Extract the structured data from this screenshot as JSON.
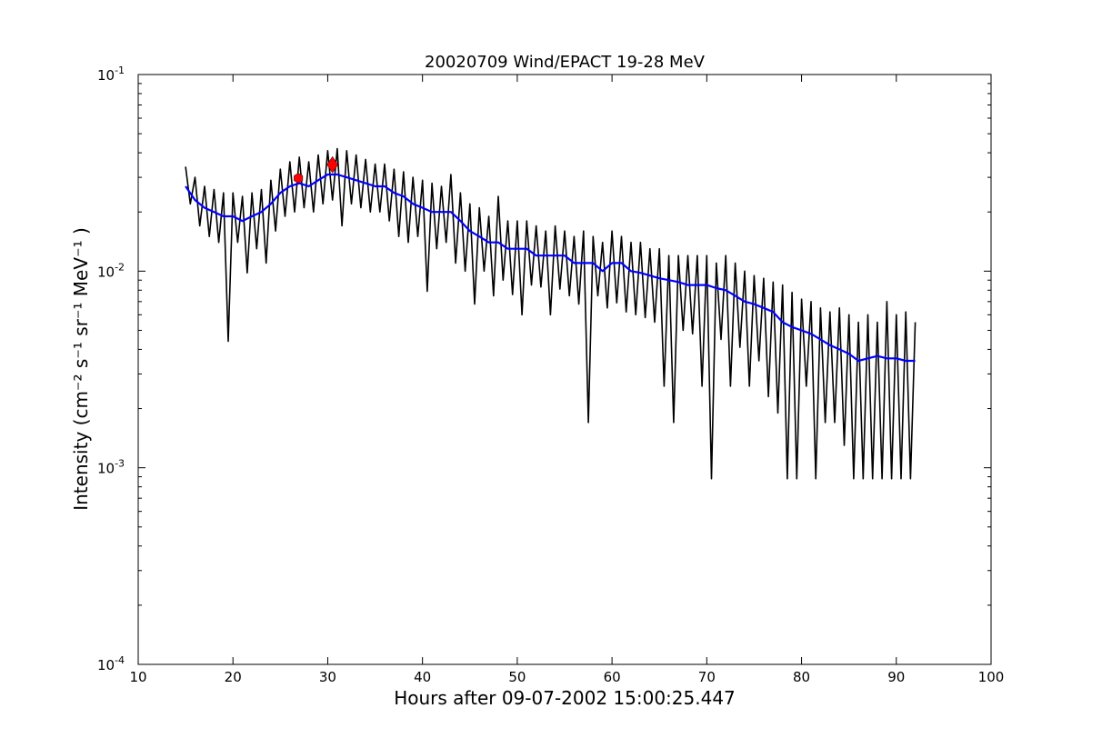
{
  "chart_data": {
    "type": "line",
    "title": "20020709 Wind/EPACT 19-28 MeV",
    "xlabel": "Hours after 09-07-2002 15:00:25.447",
    "ylabel": "Intensity (cm⁻² s⁻¹ sr⁻¹ MeV⁻¹ )",
    "xlim": [
      10,
      100
    ],
    "ylim": [
      0.0001,
      0.1
    ],
    "yscale": "log",
    "grid": false,
    "xticks": [
      10,
      20,
      30,
      40,
      50,
      60,
      70,
      80,
      90,
      100
    ],
    "xtick_labels": [
      "10",
      "20",
      "30",
      "40",
      "50",
      "60",
      "70",
      "80",
      "90",
      "100"
    ],
    "yticks": [
      0.0001,
      0.001,
      0.01,
      0.1
    ],
    "ytick_labels": [
      {
        "base": "10",
        "exp": "-4"
      },
      {
        "base": "10",
        "exp": "-3"
      },
      {
        "base": "10",
        "exp": "-2"
      },
      {
        "base": "10",
        "exp": "-1"
      }
    ],
    "series": [
      {
        "name": "intensity",
        "color": "#000000",
        "x_start": 15,
        "x_step": 0.5,
        "values": [
          0.034,
          0.022,
          0.03,
          0.017,
          0.027,
          0.015,
          0.026,
          0.014,
          0.025,
          0.0044,
          0.025,
          0.014,
          0.024,
          0.0098,
          0.025,
          0.013,
          0.026,
          0.011,
          0.029,
          0.016,
          0.033,
          0.019,
          0.036,
          0.02,
          0.038,
          0.021,
          0.036,
          0.02,
          0.039,
          0.022,
          0.041,
          0.023,
          0.042,
          0.017,
          0.041,
          0.022,
          0.039,
          0.021,
          0.037,
          0.02,
          0.035,
          0.02,
          0.035,
          0.018,
          0.033,
          0.015,
          0.032,
          0.014,
          0.03,
          0.015,
          0.029,
          0.0079,
          0.028,
          0.013,
          0.027,
          0.014,
          0.031,
          0.011,
          0.025,
          0.01,
          0.022,
          0.0068,
          0.021,
          0.01,
          0.019,
          0.0075,
          0.024,
          0.009,
          0.018,
          0.0076,
          0.018,
          0.006,
          0.018,
          0.0085,
          0.017,
          0.0083,
          0.016,
          0.006,
          0.017,
          0.0081,
          0.016,
          0.0075,
          0.015,
          0.0068,
          0.016,
          0.0017,
          0.015,
          0.0075,
          0.014,
          0.0065,
          0.016,
          0.0069,
          0.015,
          0.0062,
          0.014,
          0.006,
          0.014,
          0.0058,
          0.013,
          0.0055,
          0.013,
          0.0026,
          0.012,
          0.0017,
          0.012,
          0.005,
          0.012,
          0.0048,
          0.012,
          0.0026,
          0.012,
          0.00088,
          0.011,
          0.0045,
          0.012,
          0.0026,
          0.011,
          0.0041,
          0.01,
          0.0026,
          0.0095,
          0.0035,
          0.0092,
          0.0023,
          0.0088,
          0.0019,
          0.0085,
          0.00088,
          0.0078,
          0.00088,
          0.0072,
          0.0026,
          0.007,
          0.00088,
          0.0065,
          0.0017,
          0.0062,
          0.0017,
          0.0065,
          0.0013,
          0.006,
          0.00088,
          0.0055,
          0.00088,
          0.006,
          0.00088,
          0.0055,
          0.00088,
          0.007,
          0.00088,
          0.006,
          0.00088,
          0.0062,
          0.00088,
          0.0055
        ]
      },
      {
        "name": "smoothed",
        "color": "#0000ff",
        "x_start": 15,
        "x_step": 1,
        "values": [
          0.027,
          0.023,
          0.021,
          0.02,
          0.019,
          0.019,
          0.018,
          0.019,
          0.02,
          0.022,
          0.025,
          0.027,
          0.028,
          0.027,
          0.029,
          0.031,
          0.031,
          0.03,
          0.029,
          0.028,
          0.027,
          0.027,
          0.025,
          0.024,
          0.022,
          0.021,
          0.02,
          0.02,
          0.02,
          0.018,
          0.016,
          0.015,
          0.014,
          0.014,
          0.013,
          0.013,
          0.013,
          0.012,
          0.012,
          0.012,
          0.012,
          0.011,
          0.011,
          0.011,
          0.01,
          0.011,
          0.011,
          0.01,
          0.0098,
          0.0095,
          0.0092,
          0.009,
          0.0088,
          0.0085,
          0.0085,
          0.0085,
          0.0082,
          0.008,
          0.0075,
          0.007,
          0.0068,
          0.0065,
          0.0062,
          0.0055,
          0.0052,
          0.005,
          0.0048,
          0.0045,
          0.0042,
          0.004,
          0.0038,
          0.0035,
          0.0036,
          0.0037,
          0.0036,
          0.0036,
          0.0035,
          0.0035
        ]
      }
    ],
    "markers": [
      {
        "name": "marker-1",
        "shape": "hexagon",
        "color": "#ff0000",
        "x": 26.9,
        "y": 0.0297
      },
      {
        "name": "marker-2",
        "shape": "diamond",
        "color": "#ff0000",
        "x": 30.5,
        "y": 0.0348
      }
    ]
  }
}
